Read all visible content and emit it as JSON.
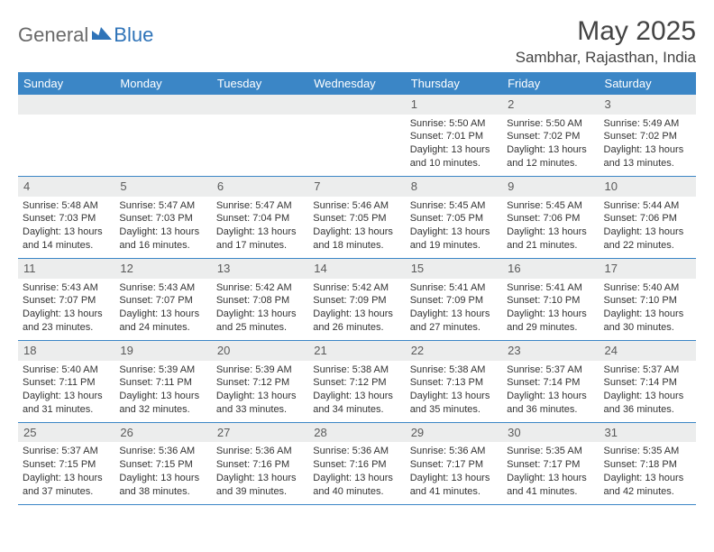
{
  "logo": {
    "part1": "General",
    "part2": "Blue"
  },
  "title": "May 2025",
  "location": "Sambhar, Rajasthan, India",
  "colors": {
    "header_bg": "#3b86c6",
    "header_text": "#ffffff",
    "daynum_bg": "#eceded",
    "border": "#3b86c6",
    "logo_gray": "#6a6a6a",
    "logo_blue": "#2e73b8"
  },
  "dow": [
    "Sunday",
    "Monday",
    "Tuesday",
    "Wednesday",
    "Thursday",
    "Friday",
    "Saturday"
  ],
  "weeks": [
    [
      {
        "n": "",
        "s": ""
      },
      {
        "n": "",
        "s": ""
      },
      {
        "n": "",
        "s": ""
      },
      {
        "n": "",
        "s": ""
      },
      {
        "n": "1",
        "s": "Sunrise: 5:50 AM\nSunset: 7:01 PM\nDaylight: 13 hours and 10 minutes."
      },
      {
        "n": "2",
        "s": "Sunrise: 5:50 AM\nSunset: 7:02 PM\nDaylight: 13 hours and 12 minutes."
      },
      {
        "n": "3",
        "s": "Sunrise: 5:49 AM\nSunset: 7:02 PM\nDaylight: 13 hours and 13 minutes."
      }
    ],
    [
      {
        "n": "4",
        "s": "Sunrise: 5:48 AM\nSunset: 7:03 PM\nDaylight: 13 hours and 14 minutes."
      },
      {
        "n": "5",
        "s": "Sunrise: 5:47 AM\nSunset: 7:03 PM\nDaylight: 13 hours and 16 minutes."
      },
      {
        "n": "6",
        "s": "Sunrise: 5:47 AM\nSunset: 7:04 PM\nDaylight: 13 hours and 17 minutes."
      },
      {
        "n": "7",
        "s": "Sunrise: 5:46 AM\nSunset: 7:05 PM\nDaylight: 13 hours and 18 minutes."
      },
      {
        "n": "8",
        "s": "Sunrise: 5:45 AM\nSunset: 7:05 PM\nDaylight: 13 hours and 19 minutes."
      },
      {
        "n": "9",
        "s": "Sunrise: 5:45 AM\nSunset: 7:06 PM\nDaylight: 13 hours and 21 minutes."
      },
      {
        "n": "10",
        "s": "Sunrise: 5:44 AM\nSunset: 7:06 PM\nDaylight: 13 hours and 22 minutes."
      }
    ],
    [
      {
        "n": "11",
        "s": "Sunrise: 5:43 AM\nSunset: 7:07 PM\nDaylight: 13 hours and 23 minutes."
      },
      {
        "n": "12",
        "s": "Sunrise: 5:43 AM\nSunset: 7:07 PM\nDaylight: 13 hours and 24 minutes."
      },
      {
        "n": "13",
        "s": "Sunrise: 5:42 AM\nSunset: 7:08 PM\nDaylight: 13 hours and 25 minutes."
      },
      {
        "n": "14",
        "s": "Sunrise: 5:42 AM\nSunset: 7:09 PM\nDaylight: 13 hours and 26 minutes."
      },
      {
        "n": "15",
        "s": "Sunrise: 5:41 AM\nSunset: 7:09 PM\nDaylight: 13 hours and 27 minutes."
      },
      {
        "n": "16",
        "s": "Sunrise: 5:41 AM\nSunset: 7:10 PM\nDaylight: 13 hours and 29 minutes."
      },
      {
        "n": "17",
        "s": "Sunrise: 5:40 AM\nSunset: 7:10 PM\nDaylight: 13 hours and 30 minutes."
      }
    ],
    [
      {
        "n": "18",
        "s": "Sunrise: 5:40 AM\nSunset: 7:11 PM\nDaylight: 13 hours and 31 minutes."
      },
      {
        "n": "19",
        "s": "Sunrise: 5:39 AM\nSunset: 7:11 PM\nDaylight: 13 hours and 32 minutes."
      },
      {
        "n": "20",
        "s": "Sunrise: 5:39 AM\nSunset: 7:12 PM\nDaylight: 13 hours and 33 minutes."
      },
      {
        "n": "21",
        "s": "Sunrise: 5:38 AM\nSunset: 7:12 PM\nDaylight: 13 hours and 34 minutes."
      },
      {
        "n": "22",
        "s": "Sunrise: 5:38 AM\nSunset: 7:13 PM\nDaylight: 13 hours and 35 minutes."
      },
      {
        "n": "23",
        "s": "Sunrise: 5:37 AM\nSunset: 7:14 PM\nDaylight: 13 hours and 36 minutes."
      },
      {
        "n": "24",
        "s": "Sunrise: 5:37 AM\nSunset: 7:14 PM\nDaylight: 13 hours and 36 minutes."
      }
    ],
    [
      {
        "n": "25",
        "s": "Sunrise: 5:37 AM\nSunset: 7:15 PM\nDaylight: 13 hours and 37 minutes."
      },
      {
        "n": "26",
        "s": "Sunrise: 5:36 AM\nSunset: 7:15 PM\nDaylight: 13 hours and 38 minutes."
      },
      {
        "n": "27",
        "s": "Sunrise: 5:36 AM\nSunset: 7:16 PM\nDaylight: 13 hours and 39 minutes."
      },
      {
        "n": "28",
        "s": "Sunrise: 5:36 AM\nSunset: 7:16 PM\nDaylight: 13 hours and 40 minutes."
      },
      {
        "n": "29",
        "s": "Sunrise: 5:36 AM\nSunset: 7:17 PM\nDaylight: 13 hours and 41 minutes."
      },
      {
        "n": "30",
        "s": "Sunrise: 5:35 AM\nSunset: 7:17 PM\nDaylight: 13 hours and 41 minutes."
      },
      {
        "n": "31",
        "s": "Sunrise: 5:35 AM\nSunset: 7:18 PM\nDaylight: 13 hours and 42 minutes."
      }
    ]
  ]
}
